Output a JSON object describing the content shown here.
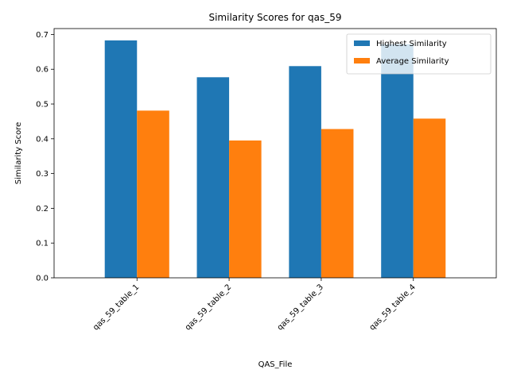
{
  "chart_data": {
    "type": "bar",
    "title": "Similarity Scores for qas_59",
    "xlabel": "QAS_File",
    "ylabel": "Similarity Score",
    "categories": [
      "qas_59_table_1",
      "qas_59_table_2",
      "qas_59_table_3",
      "qas_59_table_4"
    ],
    "series": [
      {
        "name": "Highest Similarity",
        "color": "#1f77b4",
        "values": [
          0.683,
          0.577,
          0.609,
          0.672
        ]
      },
      {
        "name": "Average Similarity",
        "color": "#ff7f0e",
        "values": [
          0.481,
          0.395,
          0.428,
          0.458
        ]
      }
    ],
    "ylim": [
      0,
      0.717
    ],
    "yticks": [
      "0.0",
      "0.1",
      "0.2",
      "0.3",
      "0.4",
      "0.5",
      "0.6",
      "0.7"
    ],
    "legend_position": "top-right",
    "grid": false
  }
}
